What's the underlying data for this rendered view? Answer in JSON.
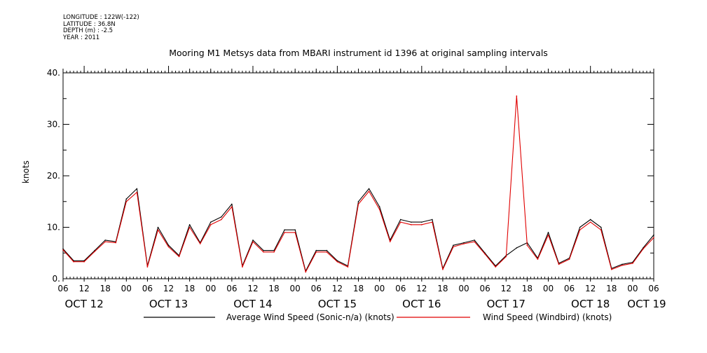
{
  "header": {
    "longitude": "LONGITUDE : 122W(-122)",
    "latitude": "LATITUDE : 36.8N",
    "depth": "DEPTH (m) : -2.5",
    "year": "YEAR : 2011"
  },
  "chart_data": {
    "type": "line",
    "title": "Mooring M1 Metsys data from MBARI instrument id 1396 at original sampling intervals",
    "ylabel": "knots",
    "xlabel": "",
    "ylim": [
      0,
      40
    ],
    "yticks": [
      0,
      10,
      20,
      30,
      40
    ],
    "ytick_labels": [
      "0.",
      "10.",
      "20.",
      "30.",
      "40."
    ],
    "x_unit": "hours since OCT 12 06:00",
    "xlim": [
      0,
      168
    ],
    "hour_tick_labels": [
      "06",
      "12",
      "18",
      "00",
      "06",
      "12",
      "18",
      "00",
      "06",
      "12",
      "18",
      "00",
      "06",
      "12",
      "18",
      "00",
      "06",
      "12",
      "18",
      "00",
      "06",
      "12",
      "18",
      "00",
      "06",
      "12",
      "18",
      "00",
      "06"
    ],
    "day_labels": [
      {
        "label": "OCT 12",
        "at": 6
      },
      {
        "label": "OCT 13",
        "at": 30
      },
      {
        "label": "OCT 14",
        "at": 54
      },
      {
        "label": "OCT 15",
        "at": 78
      },
      {
        "label": "OCT 16",
        "at": 102
      },
      {
        "label": "OCT 17",
        "at": 126
      },
      {
        "label": "OCT 18",
        "at": 150
      },
      {
        "label": "OCT 19",
        "at": 166
      }
    ],
    "grid": false,
    "legend_position": "bottom",
    "x": [
      0,
      3,
      6,
      9,
      12,
      15,
      18,
      21,
      24,
      27,
      30,
      33,
      36,
      39,
      42,
      45,
      48,
      51,
      54,
      57,
      60,
      63,
      66,
      69,
      72,
      75,
      78,
      81,
      84,
      87,
      90,
      93,
      96,
      99,
      102,
      105,
      108,
      111,
      114,
      117,
      120,
      123,
      126,
      129,
      132,
      135,
      138,
      141,
      144,
      147,
      150,
      153,
      156,
      159,
      162,
      165,
      168
    ],
    "series": [
      {
        "name": "Average Wind Speed (Sonic-n/a) (knots)",
        "color": "#000000",
        "values": [
          5.8,
          3.5,
          3.5,
          5.5,
          7.5,
          7.2,
          15.5,
          17.5,
          2.5,
          10,
          6.5,
          4.5,
          10.5,
          7,
          11,
          12,
          14.5,
          2.5,
          7.5,
          5.5,
          5.5,
          9.5,
          9.5,
          1.5,
          5.5,
          5.5,
          3.5,
          2.5,
          15,
          17.5,
          14,
          7.5,
          11.5,
          11,
          11,
          11.5,
          2,
          6.5,
          7,
          7.5,
          5,
          2.5,
          4.5,
          6,
          7,
          4,
          9,
          3,
          4,
          10,
          11.5,
          10,
          2,
          2.8,
          3.2,
          6,
          8.5
        ]
      },
      {
        "name": "Wind Speed (Windbird) (knots)",
        "color": "#e00000",
        "values": [
          5.6,
          3.3,
          3.3,
          5.3,
          7.2,
          7,
          15,
          16.8,
          2.3,
          9.5,
          6.2,
          4.3,
          10,
          6.8,
          10.5,
          11.5,
          14,
          2.3,
          7.2,
          5.2,
          5.2,
          9,
          9,
          1.3,
          5.2,
          5.2,
          3.3,
          2.3,
          14.5,
          17,
          13.5,
          7.2,
          11,
          10.5,
          10.5,
          11,
          1.8,
          6.2,
          6.8,
          7.2,
          4.8,
          2.3,
          4.3,
          35.5,
          6.5,
          3.8,
          8.5,
          2.8,
          3.8,
          9.5,
          11,
          9.5,
          1.8,
          2.6,
          3,
          5.8,
          8
        ]
      }
    ]
  }
}
